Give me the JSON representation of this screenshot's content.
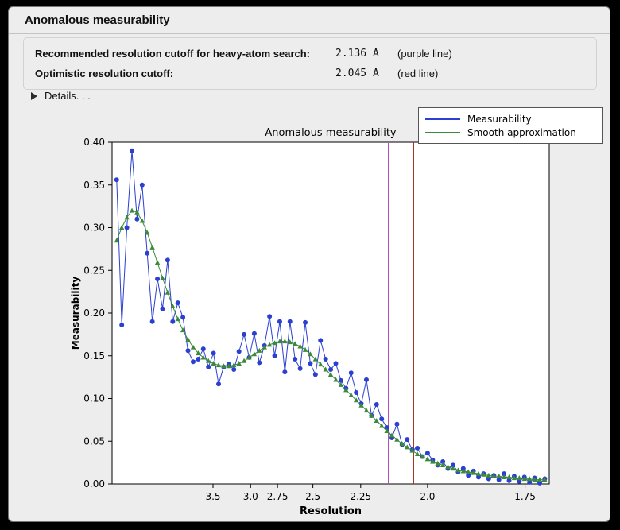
{
  "header": {
    "title": "Anomalous measurability"
  },
  "info": {
    "rows": [
      {
        "label": "Recommended resolution cutoff for heavy-atom search:",
        "value": "2.136 A",
        "note": "(purple line)"
      },
      {
        "label": "Optimistic resolution cutoff:",
        "value": "2.045 A",
        "note": "(red line)"
      }
    ],
    "details_label": "Details. . ."
  },
  "chart_data": {
    "type": "line",
    "title": "Anomalous measurability",
    "xlabel": "Resolution",
    "ylabel": "Measurability",
    "x_axis": {
      "transform": "1/d^2",
      "range_s": [
        0.0024,
        0.3455
      ],
      "ticks": [
        {
          "d": 3.5,
          "label": "3.5"
        },
        {
          "d": 3.0,
          "label": "3.0"
        },
        {
          "d": 2.75,
          "label": "2.75"
        },
        {
          "d": 2.5,
          "label": "2.5"
        },
        {
          "d": 2.25,
          "label": "2.25"
        },
        {
          "d": 2.0,
          "label": "2.0"
        },
        {
          "d": 1.75,
          "label": "1.75"
        }
      ]
    },
    "y_axis": {
      "min": 0.0,
      "max": 0.4,
      "tick_step": 0.05
    },
    "vlines": [
      {
        "d": 2.136,
        "color": "#b050b8",
        "name": "purple line (recommended cutoff)"
      },
      {
        "d": 2.045,
        "color": "#a5301f",
        "name": "red line (optimistic cutoff)"
      }
    ],
    "x_s": [
      0.006,
      0.01,
      0.014,
      0.018,
      0.022,
      0.026,
      0.03,
      0.034,
      0.038,
      0.042,
      0.046,
      0.05,
      0.054,
      0.058,
      0.062,
      0.066,
      0.07,
      0.074,
      0.078,
      0.082,
      0.086,
      0.09,
      0.094,
      0.098,
      0.102,
      0.106,
      0.11,
      0.114,
      0.118,
      0.122,
      0.126,
      0.13,
      0.134,
      0.138,
      0.142,
      0.146,
      0.15,
      0.154,
      0.158,
      0.162,
      0.166,
      0.17,
      0.174,
      0.178,
      0.182,
      0.186,
      0.19,
      0.194,
      0.198,
      0.202,
      0.206,
      0.21,
      0.214,
      0.218,
      0.222,
      0.226,
      0.23,
      0.234,
      0.238,
      0.242,
      0.246,
      0.25,
      0.254,
      0.258,
      0.262,
      0.266,
      0.27,
      0.274,
      0.278,
      0.282,
      0.286,
      0.29,
      0.294,
      0.298,
      0.302,
      0.306,
      0.31,
      0.314,
      0.318,
      0.322,
      0.326,
      0.33,
      0.334,
      0.338,
      0.342
    ],
    "series": [
      {
        "name": "Measurability",
        "color": "#2b3fd0",
        "marker": "circle",
        "values": [
          0.356,
          0.186,
          0.3,
          0.39,
          0.31,
          0.35,
          0.27,
          0.19,
          0.24,
          0.205,
          0.262,
          0.19,
          0.212,
          0.195,
          0.156,
          0.143,
          0.146,
          0.158,
          0.137,
          0.153,
          0.117,
          0.137,
          0.14,
          0.134,
          0.155,
          0.175,
          0.148,
          0.176,
          0.142,
          0.162,
          0.196,
          0.15,
          0.19,
          0.131,
          0.19,
          0.146,
          0.135,
          0.189,
          0.141,
          0.128,
          0.168,
          0.146,
          0.134,
          0.141,
          0.121,
          0.112,
          0.13,
          0.107,
          0.094,
          0.122,
          0.08,
          0.093,
          0.076,
          0.066,
          0.054,
          0.07,
          0.046,
          0.052,
          0.04,
          0.042,
          0.032,
          0.036,
          0.028,
          0.022,
          0.026,
          0.018,
          0.022,
          0.014,
          0.018,
          0.01,
          0.015,
          0.008,
          0.012,
          0.006,
          0.01,
          0.005,
          0.012,
          0.004,
          0.009,
          0.003,
          0.008,
          0.002,
          0.007,
          0.001,
          0.006
        ]
      },
      {
        "name": "Smooth approximation",
        "color": "#3a8a3a",
        "marker": "triangle",
        "values": [
          0.285,
          0.3,
          0.312,
          0.32,
          0.318,
          0.308,
          0.294,
          0.277,
          0.259,
          0.241,
          0.224,
          0.208,
          0.193,
          0.18,
          0.169,
          0.16,
          0.153,
          0.148,
          0.144,
          0.141,
          0.139,
          0.138,
          0.138,
          0.139,
          0.141,
          0.144,
          0.148,
          0.152,
          0.156,
          0.16,
          0.163,
          0.165,
          0.167,
          0.167,
          0.166,
          0.164,
          0.161,
          0.157,
          0.152,
          0.146,
          0.14,
          0.134,
          0.128,
          0.122,
          0.116,
          0.11,
          0.104,
          0.098,
          0.092,
          0.086,
          0.08,
          0.074,
          0.068,
          0.062,
          0.057,
          0.052,
          0.047,
          0.043,
          0.039,
          0.035,
          0.032,
          0.029,
          0.026,
          0.024,
          0.022,
          0.02,
          0.018,
          0.016,
          0.015,
          0.014,
          0.013,
          0.012,
          0.011,
          0.01,
          0.009,
          0.009,
          0.008,
          0.008,
          0.007,
          0.007,
          0.006,
          0.006,
          0.005,
          0.005,
          0.005
        ]
      }
    ],
    "legend_position": "top-right"
  }
}
